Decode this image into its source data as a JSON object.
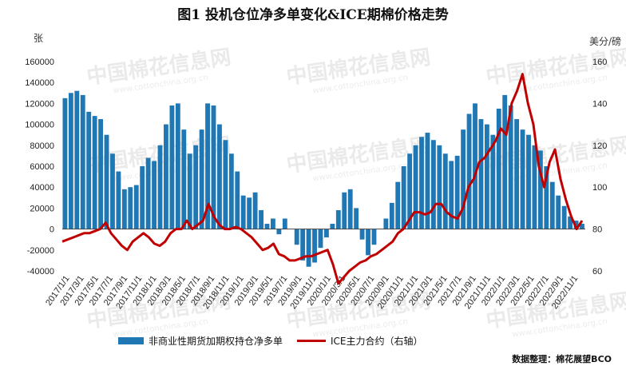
{
  "title": "图1  投机仓位净多单变化&ICE期棉价格走势",
  "source": "数据整理：棉花展望BCO",
  "watermark": {
    "main": "中国棉花信息网",
    "url": "www.cottonchina.org.cn"
  },
  "colors": {
    "bars": "#1f77b4",
    "line": "#c00000"
  },
  "chart_data": {
    "type": "bar+line",
    "left_axis": {
      "label": "张",
      "min": -40000,
      "max": 160000,
      "ticks": [
        -40000,
        -20000,
        0,
        20000,
        40000,
        60000,
        80000,
        100000,
        120000,
        140000,
        160000
      ]
    },
    "right_axis": {
      "label": "美分/磅",
      "min": 60,
      "max": 160,
      "ticks": [
        60,
        80,
        100,
        120,
        140,
        160
      ]
    },
    "x_tick_labels": [
      "2017/1/1",
      "2017/3/1",
      "2017/5/1",
      "2017/7/1",
      "2017/9/1",
      "2017/11/1",
      "2018/1/1",
      "2018/3/1",
      "2018/5/1",
      "2018/7/1",
      "2018/9/1",
      "2018/11/1",
      "2019/1/1",
      "2019/3/1",
      "2019/5/1",
      "2019/7/1",
      "2019/9/1",
      "2019/11/1",
      "2020/1/1",
      "2020/3/1",
      "2020/5/1",
      "2020/7/1",
      "2020/9/1",
      "2020/11/1",
      "2021/1/1",
      "2021/3/1",
      "2021/5/1",
      "2021/7/1",
      "2021/9/1",
      "2021/11/1",
      "2022/1/1",
      "2022/3/1",
      "2022/5/1",
      "2022/7/1",
      "2022/9/1",
      "2022/11/1"
    ],
    "series": [
      {
        "name": "非商业性期货加期权持仓净多单",
        "type": "bar",
        "axis": "left",
        "values": [
          125000,
          130000,
          132000,
          128000,
          112000,
          108000,
          105000,
          90000,
          72000,
          55000,
          38000,
          40000,
          42000,
          60000,
          68000,
          65000,
          80000,
          100000,
          118000,
          120000,
          95000,
          72000,
          80000,
          95000,
          120000,
          118000,
          100000,
          85000,
          72000,
          55000,
          32000,
          30000,
          35000,
          18000,
          5000,
          10000,
          -5000,
          10000,
          0,
          -15000,
          -30000,
          -36000,
          -32000,
          -18000,
          -8000,
          5000,
          18000,
          35000,
          38000,
          20000,
          -10000,
          -25000,
          -15000,
          0,
          10000,
          25000,
          45000,
          60000,
          72000,
          80000,
          88000,
          92000,
          85000,
          80000,
          72000,
          65000,
          70000,
          95000,
          110000,
          120000,
          105000,
          100000,
          90000,
          115000,
          128000,
          118000,
          105000,
          95000,
          90000,
          80000,
          75000,
          60000,
          45000,
          32000,
          22000,
          12000,
          8000,
          5000
        ]
      },
      {
        "name": "ICE主力合约（右轴）",
        "type": "line",
        "axis": "right",
        "values": [
          74,
          75,
          76,
          77,
          78,
          78,
          79,
          80,
          83,
          78,
          75,
          72,
          70,
          74,
          76,
          78,
          76,
          73,
          72,
          74,
          78,
          80,
          80,
          84,
          80,
          82,
          84,
          92,
          86,
          82,
          80,
          80,
          81,
          80,
          78,
          76,
          73,
          70,
          71,
          73,
          68,
          67,
          65,
          65,
          66,
          67,
          67,
          68,
          69,
          70,
          63,
          54,
          57,
          60,
          62,
          64,
          65,
          67,
          68,
          70,
          72,
          74,
          78,
          80,
          84,
          88,
          88,
          87,
          88,
          92,
          92,
          88,
          86,
          85,
          90,
          100,
          104,
          112,
          114,
          118,
          122,
          128,
          125,
          140,
          146,
          154,
          140,
          130,
          110,
          100,
          112,
          118,
          104,
          94,
          86,
          80,
          84
        ]
      }
    ],
    "grid": false,
    "legend": "bottom"
  }
}
